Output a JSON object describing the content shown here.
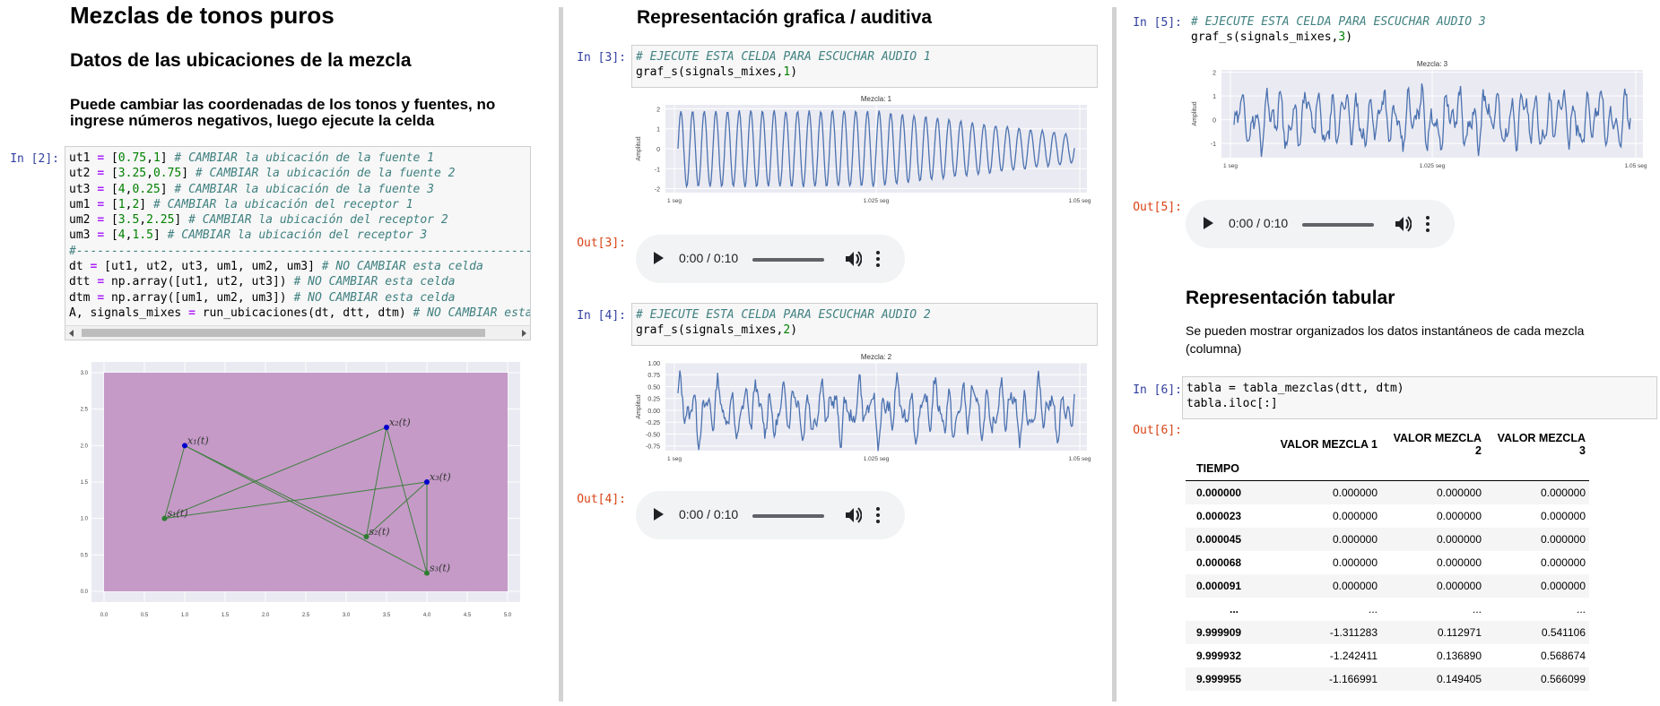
{
  "col1": {
    "title": "Mezclas de tonos puros",
    "subtitle": "Datos de las ubicaciones de la mezcla",
    "instruction_line1": "Puede cambiar las coordenadas de los tonos y fuentes, no",
    "instruction_line2": "ingrese números negativos, luego ejecute la celda",
    "in_prompt": "In [2]:"
  },
  "col2": {
    "title": "Representación grafica / auditiva",
    "cell3": {
      "in_prompt": "In [3]:",
      "line1": "# EJECUTE ESTA CELDA PARA ESCUCHAR AUDIO 1",
      "out_prompt": "Out[3]:"
    },
    "cell4": {
      "in_prompt": "In [4]:",
      "line1": "# EJECUTE ESTA CELDA PARA ESCUCHAR AUDIO 2",
      "out_prompt": "Out[4]:"
    }
  },
  "col3": {
    "cell5": {
      "in_prompt": "In [5]:",
      "line1": "# EJECUTE ESTA CELDA PARA ESCUCHAR AUDIO 3",
      "out_prompt": "Out[5]:"
    },
    "tab_title": "Representación tabular",
    "tab_desc_line1": "Se pueden mostrar organizados los datos instantáneos de cada mezcla",
    "tab_desc_line2": "(columna)",
    "cell6": {
      "in_prompt": "In [6]:",
      "line1": "tabla = tabla_mezclas(dtt, dtm)",
      "line2": "tabla.iloc[:]",
      "out_prompt": "Out[6]:"
    },
    "table": {
      "columns": [
        "VALOR MEZCLA 1",
        "VALOR MEZCLA 2",
        "VALOR MEZCLA 3"
      ],
      "index_name": "TIEMPO",
      "rows": [
        [
          "0.000000",
          "0.000000",
          "0.000000",
          "0.000000"
        ],
        [
          "0.000023",
          "0.000000",
          "0.000000",
          "0.000000"
        ],
        [
          "0.000045",
          "0.000000",
          "0.000000",
          "0.000000"
        ],
        [
          "0.000068",
          "0.000000",
          "0.000000",
          "0.000000"
        ],
        [
          "0.000091",
          "0.000000",
          "0.000000",
          "0.000000"
        ],
        [
          "...",
          "...",
          "...",
          "..."
        ],
        [
          "9.999909",
          "-1.311283",
          "0.112971",
          "0.541106"
        ],
        [
          "9.999932",
          "-1.242411",
          "0.136890",
          "0.568674"
        ],
        [
          "9.999955",
          "-1.166991",
          "0.149405",
          "0.566099"
        ]
      ]
    }
  },
  "audio": {
    "time": "0:00 / 0:10"
  },
  "chart_data": [
    {
      "type": "scatter",
      "plot_bg": "#c59ac7",
      "xlim": [
        0,
        5
      ],
      "ylim": [
        0,
        3
      ],
      "xticks": [
        "0.0",
        "0.5",
        "1.0",
        "1.5",
        "2.0",
        "2.5",
        "3.0",
        "3.5",
        "4.0",
        "4.5",
        "5.0"
      ],
      "yticks": [
        "0.0",
        "0.5",
        "1.0",
        "1.5",
        "2.0",
        "2.5",
        "3.0"
      ],
      "receivers": [
        {
          "label": "x₁(t)",
          "x": 1.0,
          "y": 2.0
        },
        {
          "label": "x₂(t)",
          "x": 3.5,
          "y": 2.25
        },
        {
          "label": "x₃(t)",
          "x": 4.0,
          "y": 1.5
        }
      ],
      "sources": [
        {
          "label": "s₁(t)",
          "x": 0.75,
          "y": 1.0
        },
        {
          "label": "s₂(t)",
          "x": 3.25,
          "y": 0.75
        },
        {
          "label": "s₃(t)",
          "x": 4.0,
          "y": 0.25
        }
      ],
      "receiver_color": "#0000cc",
      "source_color": "#2e7d32"
    },
    {
      "type": "line",
      "title": "Mezcla: 1",
      "ylabel": "Amplitud",
      "xticks": [
        "1 seg",
        "1.025 seg",
        "1.05 seg"
      ],
      "yticks": [
        "2",
        "1",
        "0",
        "-1",
        "-2"
      ],
      "ylim": [
        -2.2,
        2.2
      ],
      "shape": "decaying",
      "freq": 34,
      "amp": 1.9,
      "color": "#4c72b0"
    },
    {
      "type": "line",
      "title": "Mezcla: 2",
      "ylabel": "Amplitud",
      "xticks": [
        "1 seg",
        "1.025 seg",
        "1.05 seg"
      ],
      "yticks": [
        "1.00",
        "0.75",
        "0.50",
        "0.25",
        "0.00",
        "-0.25",
        "-0.50",
        "-0.75"
      ],
      "ylim": [
        -0.85,
        1.0
      ],
      "shape": "noisy",
      "amp": 0.75,
      "color": "#4c72b0"
    },
    {
      "type": "line",
      "title": "Mezcla: 3",
      "ylabel": "Amplitud",
      "xticks": [
        "1 seg",
        "1.025 seg",
        "1.05 seg"
      ],
      "yticks": [
        "2",
        "1",
        "0",
        "-1"
      ],
      "ylim": [
        -1.6,
        2.1
      ],
      "shape": "noisy",
      "amp": 1.6,
      "color": "#4c72b0"
    }
  ]
}
